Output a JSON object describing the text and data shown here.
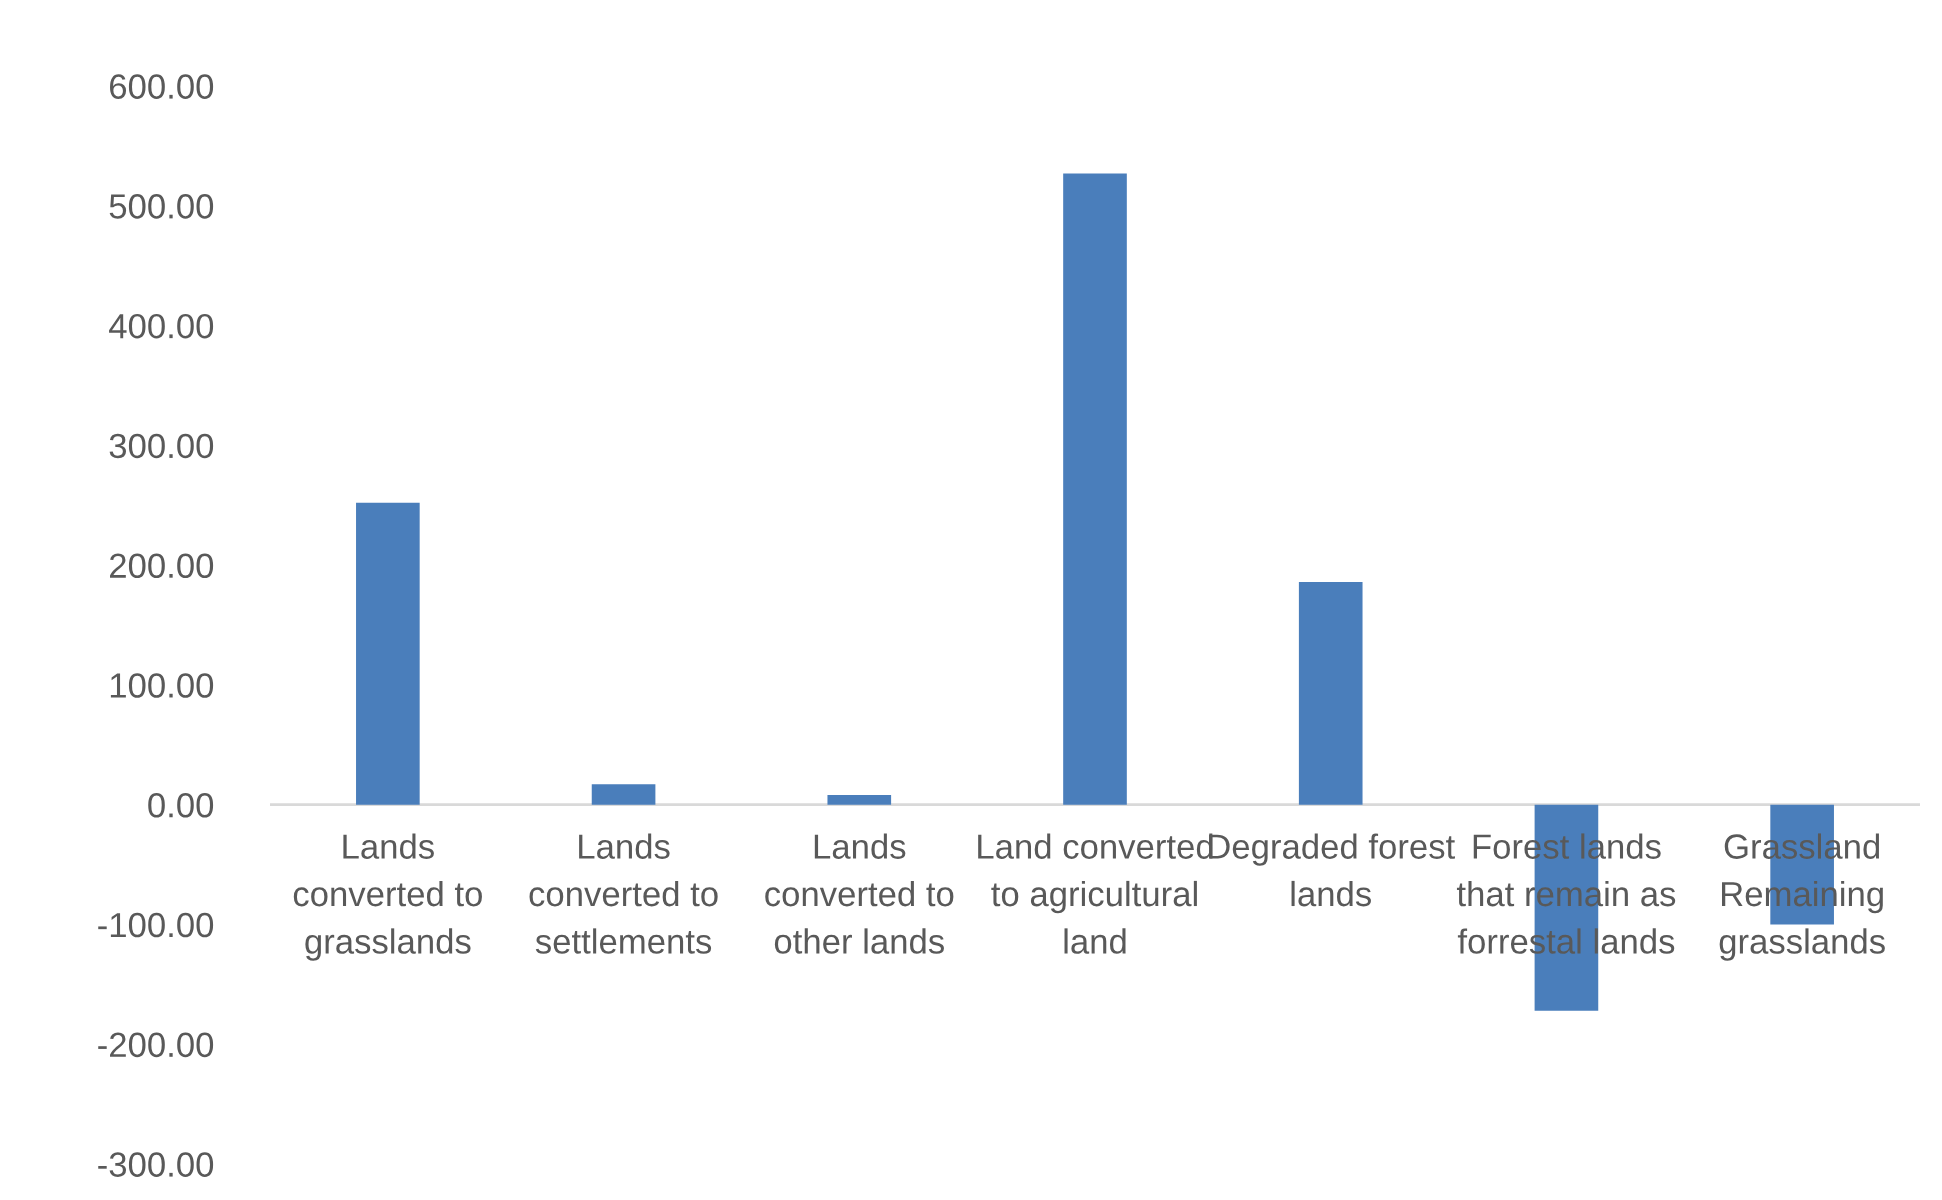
{
  "chart_data": {
    "type": "bar",
    "categories": [
      "Lands converted to grasslands",
      "Lands converted to settlements",
      "Lands converted to other lands",
      "Land converted to agricultural land",
      "Degraded forest lands",
      "Forest lands that remain as forrestal lands",
      "Grassland Remaining grasslands"
    ],
    "values": [
      252,
      17,
      8,
      527,
      186,
      -172,
      -100
    ],
    "color": "#4a7ebb",
    "ylim": [
      -300,
      600
    ],
    "yticks": [
      {
        "value": -300,
        "label": "-300.00"
      },
      {
        "value": -200,
        "label": "-200.00"
      },
      {
        "value": -100,
        "label": "-100.00"
      },
      {
        "value": 0,
        "label": "0.00"
      },
      {
        "value": 100,
        "label": "100.00"
      },
      {
        "value": 200,
        "label": "200.00"
      },
      {
        "value": 300,
        "label": "300.00"
      },
      {
        "value": 400,
        "label": "400.00"
      },
      {
        "value": 500,
        "label": "500.00"
      },
      {
        "value": 600,
        "label": "600.00"
      }
    ],
    "grid": false,
    "legend": false
  }
}
